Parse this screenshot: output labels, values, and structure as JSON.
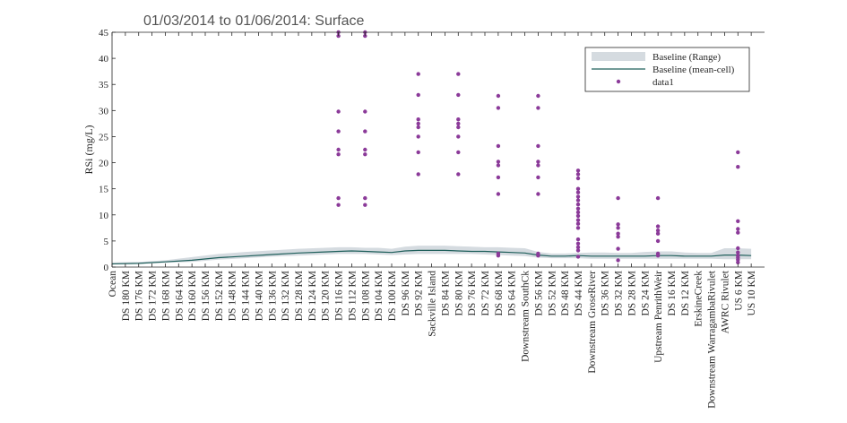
{
  "chart_data": {
    "type": "scatter",
    "title": "01/03/2014 to 01/06/2014: Surface",
    "ylabel": "RSi (mg/L)",
    "xlabel": "",
    "ylim": [
      0,
      45
    ],
    "yticks": [
      0,
      5,
      10,
      15,
      20,
      25,
      30,
      35,
      40,
      45
    ],
    "legend_position": "top-right",
    "grid": false,
    "categories": [
      "Ocean",
      "DS 180 KM",
      "DS 176 KM",
      "DS 172 KM",
      "DS 168 KM",
      "DS 164 KM",
      "DS 160 KM",
      "DS 156 KM",
      "DS 152 KM",
      "DS 148 KM",
      "DS 144 KM",
      "DS 140 KM",
      "DS 136 KM",
      "DS 132 KM",
      "DS 128 KM",
      "DS 124 KM",
      "DS 120 KM",
      "DS 116 KM",
      "DS 112 KM",
      "DS 108 KM",
      "DS 104 KM",
      "DS 100 KM",
      "DS 96 KM",
      "DS 92 KM",
      "Sackville Island",
      "DS 84 KM",
      "DS 80 KM",
      "DS 76 KM",
      "DS 72 KM",
      "DS 68 KM",
      "DS 64 KM",
      "Downstream South Ck",
      "DS 56 KM",
      "DS 52 KM",
      "DS 48 KM",
      "DS 44 KM",
      "Downstream Grose River",
      "DS 36 KM",
      "DS 32 KM",
      "DS 28 KM",
      "DS 24 KM",
      "Upstream Penrith Weir",
      "DS 16 KM",
      "DS 12 KM",
      "Erskine Creek",
      "Downstream Warragamba Rivulet",
      "AWRC Rivulet",
      "US 6 KM",
      "US 10 KM"
    ],
    "categories_display": [
      "Ocean",
      "DS 180 KM",
      "DS 176 KM",
      "DS 172 KM",
      "DS 168 KM",
      "DS 164 KM",
      "DS 160 KM",
      "DS 156 KM",
      "DS 152 KM",
      "DS 148 KM",
      "DS 144 KM",
      "DS 140 KM",
      "DS 136 KM",
      "DS 132 KM",
      "DS 128 KM",
      "DS 124 KM",
      "DS 120 KM",
      "DS 116 KM",
      "DS 112 KM",
      "DS 108 KM",
      "DS 104 KM",
      "DS 100 KM",
      "DS 96 KM",
      "DS 92 KM",
      "Sackville Island",
      "DS 84 KM",
      "DS 80 KM",
      "DS 76 KM",
      "DS 72 KM",
      "DS 68 KM",
      "DS 64 KM",
      "Downstream SouthCk",
      "DS 56 KM",
      "DS 52 KM",
      "DS 48 KM",
      "DS 44 KM",
      "Downstream GroseRiver",
      "DS 36 KM",
      "DS 32 KM",
      "DS 28 KM",
      "DS 24 KM",
      "Upstream PenrithWeir",
      "DS 16 KM",
      "DS 12 KM",
      "ErskineCreek",
      "Downstream WarragambaRivulet",
      "AWRC Rivulet",
      "US 6 KM",
      "US 10 KM"
    ],
    "series": [
      {
        "name": "Baseline (Range)",
        "type": "area",
        "color": "#d5dbe0",
        "x": [
          0,
          2,
          4,
          6,
          8,
          10,
          12,
          14,
          16,
          17,
          18,
          19,
          20,
          21,
          22,
          23,
          24,
          25,
          26,
          27,
          28,
          29,
          30,
          31,
          32,
          33,
          34,
          35,
          36,
          37,
          38,
          39,
          40,
          41,
          42,
          43,
          44,
          45,
          46,
          47,
          48
        ],
        "lower": [
          0.5,
          0.6,
          0.8,
          1.0,
          1.4,
          1.7,
          2.0,
          2.2,
          2.4,
          2.5,
          2.5,
          2.5,
          2.4,
          2.3,
          2.4,
          2.5,
          2.5,
          2.5,
          2.5,
          2.5,
          2.4,
          2.3,
          2.2,
          2.1,
          1.8,
          1.7,
          1.7,
          1.7,
          1.6,
          1.6,
          1.6,
          1.6,
          1.6,
          1.6,
          1.6,
          1.6,
          1.6,
          1.6,
          1.5,
          1.5,
          1.5
        ],
        "upper": [
          0.9,
          1.0,
          1.3,
          1.9,
          2.5,
          2.9,
          3.2,
          3.5,
          3.7,
          3.8,
          3.8,
          3.7,
          3.7,
          3.5,
          3.9,
          4.1,
          4.1,
          4.1,
          4.0,
          3.9,
          3.8,
          3.8,
          3.7,
          3.6,
          2.9,
          2.6,
          2.6,
          2.7,
          2.8,
          2.8,
          2.7,
          2.7,
          2.9,
          3.0,
          3.0,
          2.8,
          2.7,
          2.7,
          3.6,
          3.6,
          3.5
        ]
      },
      {
        "name": "Baseline (mean-cell)",
        "type": "line",
        "color": "#1f5f5b",
        "x": [
          0,
          2,
          4,
          6,
          8,
          10,
          12,
          14,
          16,
          17,
          18,
          19,
          20,
          21,
          22,
          23,
          24,
          25,
          26,
          27,
          28,
          29,
          30,
          31,
          32,
          33,
          34,
          35,
          36,
          37,
          38,
          39,
          40,
          41,
          42,
          43,
          44,
          45,
          46,
          47,
          48
        ],
        "y": [
          0.6,
          0.7,
          1.0,
          1.3,
          1.8,
          2.1,
          2.4,
          2.7,
          2.9,
          3.0,
          3.1,
          3.0,
          2.9,
          2.8,
          3.1,
          3.2,
          3.2,
          3.2,
          3.1,
          3.0,
          3.0,
          2.9,
          2.8,
          2.7,
          2.3,
          2.1,
          2.1,
          2.2,
          2.1,
          2.1,
          2.1,
          2.1,
          2.1,
          2.2,
          2.2,
          2.1,
          2.1,
          2.1,
          2.3,
          2.3,
          2.2
        ]
      },
      {
        "name": "data1",
        "type": "scatter",
        "color": "#8b3a99",
        "points": [
          {
            "x": 17,
            "y": 45
          },
          {
            "x": 17,
            "y": 44.3
          },
          {
            "x": 17,
            "y": 29.8
          },
          {
            "x": 17,
            "y": 26.0
          },
          {
            "x": 17,
            "y": 22.5
          },
          {
            "x": 17,
            "y": 21.6
          },
          {
            "x": 17,
            "y": 13.2
          },
          {
            "x": 17,
            "y": 11.9
          },
          {
            "x": 19,
            "y": 45
          },
          {
            "x": 19,
            "y": 44.3
          },
          {
            "x": 19,
            "y": 29.8
          },
          {
            "x": 19,
            "y": 26.0
          },
          {
            "x": 19,
            "y": 22.5
          },
          {
            "x": 19,
            "y": 21.6
          },
          {
            "x": 19,
            "y": 13.2
          },
          {
            "x": 19,
            "y": 11.9
          },
          {
            "x": 23,
            "y": 37.0
          },
          {
            "x": 23,
            "y": 33.0
          },
          {
            "x": 23,
            "y": 28.3
          },
          {
            "x": 23,
            "y": 27.5
          },
          {
            "x": 23,
            "y": 26.8
          },
          {
            "x": 23,
            "y": 25.0
          },
          {
            "x": 23,
            "y": 22.0
          },
          {
            "x": 23,
            "y": 17.8
          },
          {
            "x": 26,
            "y": 37.0
          },
          {
            "x": 26,
            "y": 33.0
          },
          {
            "x": 26,
            "y": 28.3
          },
          {
            "x": 26,
            "y": 27.5
          },
          {
            "x": 26,
            "y": 26.8
          },
          {
            "x": 26,
            "y": 25.0
          },
          {
            "x": 26,
            "y": 22.0
          },
          {
            "x": 26,
            "y": 17.8
          },
          {
            "x": 29,
            "y": 32.8
          },
          {
            "x": 29,
            "y": 30.5
          },
          {
            "x": 29,
            "y": 23.2
          },
          {
            "x": 29,
            "y": 20.2
          },
          {
            "x": 29,
            "y": 19.5
          },
          {
            "x": 29,
            "y": 17.2
          },
          {
            "x": 29,
            "y": 14.0
          },
          {
            "x": 29,
            "y": 2.6
          },
          {
            "x": 29,
            "y": 2.2
          },
          {
            "x": 32,
            "y": 32.8
          },
          {
            "x": 32,
            "y": 30.5
          },
          {
            "x": 32,
            "y": 23.2
          },
          {
            "x": 32,
            "y": 20.2
          },
          {
            "x": 32,
            "y": 19.5
          },
          {
            "x": 32,
            "y": 17.2
          },
          {
            "x": 32,
            "y": 14.0
          },
          {
            "x": 32,
            "y": 2.6
          },
          {
            "x": 32,
            "y": 2.2
          },
          {
            "x": 35,
            "y": 18.5
          },
          {
            "x": 35,
            "y": 17.8
          },
          {
            "x": 35,
            "y": 17.0
          },
          {
            "x": 35,
            "y": 15.0
          },
          {
            "x": 35,
            "y": 14.3
          },
          {
            "x": 35,
            "y": 13.5
          },
          {
            "x": 35,
            "y": 12.8
          },
          {
            "x": 35,
            "y": 12.0
          },
          {
            "x": 35,
            "y": 11.2
          },
          {
            "x": 35,
            "y": 10.5
          },
          {
            "x": 35,
            "y": 9.8
          },
          {
            "x": 35,
            "y": 9.0
          },
          {
            "x": 35,
            "y": 8.3
          },
          {
            "x": 35,
            "y": 7.5
          },
          {
            "x": 35,
            "y": 5.3
          },
          {
            "x": 35,
            "y": 4.5
          },
          {
            "x": 35,
            "y": 3.8
          },
          {
            "x": 35,
            "y": 3.2
          },
          {
            "x": 35,
            "y": 2.0
          },
          {
            "x": 38,
            "y": 13.2
          },
          {
            "x": 38,
            "y": 8.2
          },
          {
            "x": 38,
            "y": 7.5
          },
          {
            "x": 38,
            "y": 6.4
          },
          {
            "x": 38,
            "y": 5.8
          },
          {
            "x": 38,
            "y": 3.5
          },
          {
            "x": 38,
            "y": 1.3
          },
          {
            "x": 41,
            "y": 13.2
          },
          {
            "x": 41,
            "y": 7.8
          },
          {
            "x": 41,
            "y": 7.0
          },
          {
            "x": 41,
            "y": 6.4
          },
          {
            "x": 41,
            "y": 5.0
          },
          {
            "x": 41,
            "y": 2.6
          },
          {
            "x": 41,
            "y": 2.2
          },
          {
            "x": 47,
            "y": 22.0
          },
          {
            "x": 47,
            "y": 19.2
          },
          {
            "x": 47,
            "y": 8.8
          },
          {
            "x": 47,
            "y": 7.3
          },
          {
            "x": 47,
            "y": 6.6
          },
          {
            "x": 47,
            "y": 3.6
          },
          {
            "x": 47,
            "y": 2.8
          },
          {
            "x": 47,
            "y": 2.2
          },
          {
            "x": 47,
            "y": 1.8
          },
          {
            "x": 47,
            "y": 1.4
          },
          {
            "x": 47,
            "y": 0.9
          }
        ]
      }
    ]
  }
}
